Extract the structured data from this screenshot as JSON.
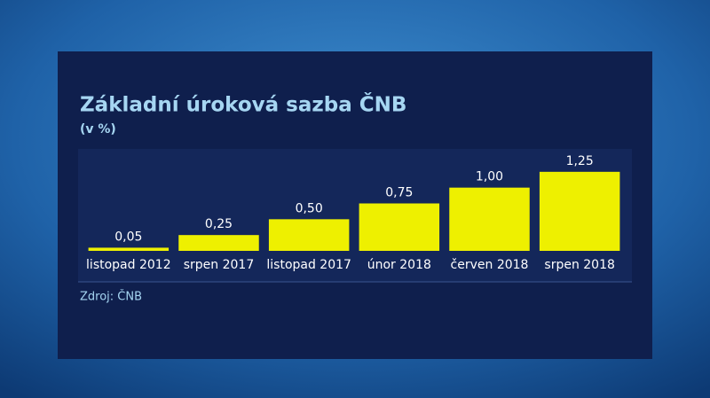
{
  "chart_data": {
    "type": "bar",
    "title": "Základní úroková sazba ČNB",
    "subtitle": "(v %)",
    "categories": [
      "listopad 2012",
      "srpen 2017",
      "listopad 2017",
      "únor 2018",
      "červen 2018",
      "srpen 2018"
    ],
    "values": [
      0.05,
      0.25,
      0.5,
      0.75,
      1,
      1.25
    ],
    "value_labels": [
      "0,05",
      "0,25",
      "0,50",
      "0,75",
      "1,00",
      "1,25"
    ],
    "color": "#eef000",
    "ylim": [
      0,
      1.5
    ],
    "source": "Zdroj: ČNB"
  }
}
